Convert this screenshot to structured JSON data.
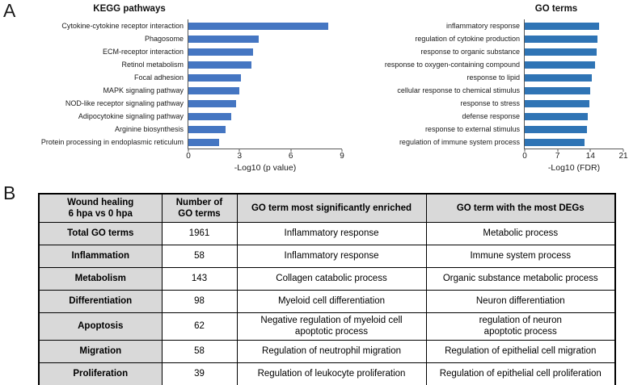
{
  "figure": {
    "panel_a_label": "A",
    "panel_b_label": "B"
  },
  "chart_data": [
    {
      "type": "bar",
      "orientation": "horizontal",
      "title": "KEGG pathways",
      "categories": [
        "Cytokine-cytokine receptor interaction",
        "Phagosome",
        "ECM-receptor interaction",
        "Retinol metabolism",
        "Focal adhesion",
        "MAPK signaling pathway",
        "NOD-like receptor signaling pathway",
        "Adipocytokine signaling pathway",
        "Arginine biosynthesis",
        "Protein processing in endoplasmic reticulum"
      ],
      "values": [
        8.2,
        4.1,
        3.8,
        3.7,
        3.1,
        3.0,
        2.8,
        2.5,
        2.2,
        1.8
      ],
      "xlabel": "-Log10 (p value)",
      "xlim": [
        0,
        9
      ],
      "xticks": [
        0,
        3,
        6,
        9
      ],
      "bar_color": "#4576c2",
      "grid": false,
      "legend": "none"
    },
    {
      "type": "bar",
      "orientation": "horizontal",
      "title": "GO terms",
      "categories": [
        "inflammatory response",
        "regulation of cytokine production",
        "response to organic substance",
        "response to oxygen-containing compound",
        "response to lipid",
        "cellular response to chemical stimulus",
        "response to stress",
        "defense response",
        "response to external stimulus",
        "regulation of immune system process"
      ],
      "values": [
        15.8,
        15.5,
        15.3,
        15.0,
        14.3,
        14.0,
        13.8,
        13.5,
        13.2,
        12.8
      ],
      "xlabel": "-Log10 (FDR)",
      "xlim": [
        0,
        21
      ],
      "xticks": [
        0,
        7,
        14,
        21
      ],
      "bar_color": "#2f74b5",
      "grid": false,
      "legend": "none"
    },
    {
      "type": "table",
      "headers": [
        "Wound healing\n6 hpa vs 0 hpa",
        "Number of\nGO terms",
        "GO term most significantly enriched",
        "GO term with the most DEGs"
      ],
      "rows": [
        [
          "Total GO terms",
          "1961",
          "Inflammatory response",
          "Metabolic process"
        ],
        [
          "Inflammation",
          "58",
          "Inflammatory response",
          "Immune system process"
        ],
        [
          "Metabolism",
          "143",
          "Collagen catabolic process",
          "Organic substance metabolic process"
        ],
        [
          "Differentiation",
          "98",
          "Myeloid cell differentiation",
          "Neuron differentiation"
        ],
        [
          "Apoptosis",
          "62",
          "Negative regulation of myeloid cell\napoptotic process",
          "regulation of neuron\napoptotic process"
        ],
        [
          "Migration",
          "58",
          "Regulation of neutrophil migration",
          "Regulation of epithelial cell migration"
        ],
        [
          "Proliferation",
          "39",
          "Regulation of leukocyte proliferation",
          "Regulation of epithelial cell proliferation"
        ]
      ]
    }
  ]
}
